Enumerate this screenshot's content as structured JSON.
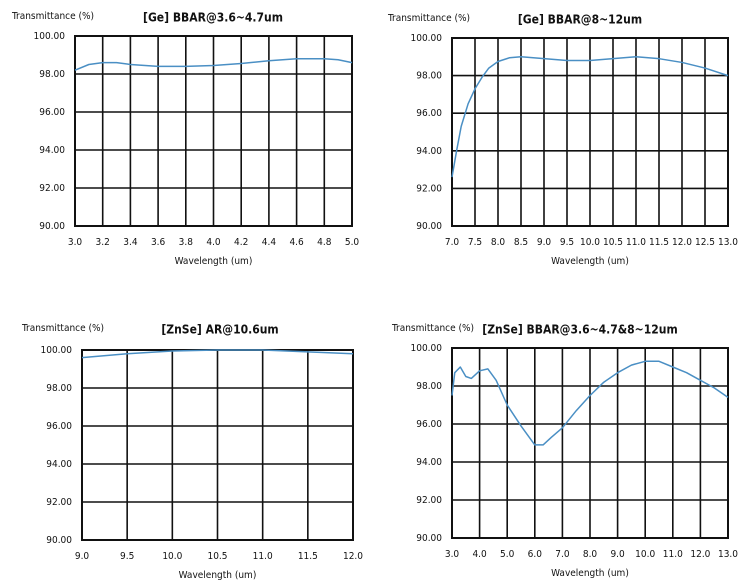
{
  "chart_data": [
    {
      "type": "line",
      "title": "[Ge] BBAR@3.6~4.7um",
      "ylabel": "Transmittance (%)",
      "xlabel": "Wavelength (um)",
      "color": "#4a8fc4",
      "grid": true,
      "x": [
        3.0,
        3.1,
        3.2,
        3.3,
        3.4,
        3.6,
        3.8,
        4.0,
        4.2,
        4.4,
        4.6,
        4.8,
        4.9,
        5.0
      ],
      "values": [
        98.2,
        98.5,
        98.6,
        98.6,
        98.5,
        98.4,
        98.4,
        98.45,
        98.55,
        98.7,
        98.8,
        98.8,
        98.75,
        98.6
      ],
      "xlim": [
        3.0,
        5.0
      ],
      "ylim": [
        90,
        100
      ],
      "xticks": [
        {
          "value": 3.0,
          "label": "3.0"
        },
        {
          "value": 3.2,
          "label": "3.2"
        },
        {
          "value": 3.4,
          "label": "3.4"
        },
        {
          "value": 3.6,
          "label": "3.6"
        },
        {
          "value": 3.8,
          "label": "3.8"
        },
        {
          "value": 4.0,
          "label": "4.0"
        },
        {
          "value": 4.2,
          "label": "4.2"
        },
        {
          "value": 4.4,
          "label": "4.4"
        },
        {
          "value": 4.6,
          "label": "4.6"
        },
        {
          "value": 4.8,
          "label": "4.8"
        },
        {
          "value": 5.0,
          "label": "5.0"
        }
      ],
      "yticks": [
        {
          "value": 100,
          "label": "100.00"
        },
        {
          "value": 98,
          "label": "98.00"
        },
        {
          "value": 96,
          "label": "96.00"
        },
        {
          "value": 94,
          "label": "94.00"
        },
        {
          "value": 92,
          "label": "92.00"
        },
        {
          "value": 90,
          "label": "90.00"
        }
      ]
    },
    {
      "type": "line",
      "title": "[Ge] BBAR@8~12um",
      "ylabel": "Transmittance (%)",
      "xlabel": "Wavelength (um)",
      "color": "#4a8fc4",
      "grid": true,
      "x": [
        7.0,
        7.1,
        7.2,
        7.35,
        7.5,
        7.65,
        7.8,
        8.0,
        8.25,
        8.5,
        9.0,
        9.5,
        10.0,
        10.5,
        11.0,
        11.5,
        12.0,
        12.5,
        13.0
      ],
      "values": [
        92.6,
        94.0,
        95.3,
        96.5,
        97.3,
        97.9,
        98.4,
        98.75,
        98.95,
        99.0,
        98.9,
        98.8,
        98.8,
        98.9,
        99.0,
        98.9,
        98.7,
        98.4,
        98.0
      ],
      "xlim": [
        7.0,
        13.0
      ],
      "ylim": [
        90,
        100
      ],
      "xticks": [
        {
          "value": 7.0,
          "label": "7.0"
        },
        {
          "value": 7.5,
          "label": "7.5"
        },
        {
          "value": 8.0,
          "label": "8.0"
        },
        {
          "value": 8.5,
          "label": "8.5"
        },
        {
          "value": 9.0,
          "label": "9.0"
        },
        {
          "value": 9.5,
          "label": "9.5"
        },
        {
          "value": 10.0,
          "label": "10.0"
        },
        {
          "value": 10.5,
          "label": "10.5"
        },
        {
          "value": 11.0,
          "label": "11.0"
        },
        {
          "value": 11.5,
          "label": "11.5"
        },
        {
          "value": 12.0,
          "label": "12.0"
        },
        {
          "value": 12.5,
          "label": "12.5"
        },
        {
          "value": 13.0,
          "label": "13.0"
        }
      ],
      "yticks": [
        {
          "value": 100,
          "label": "100.00"
        },
        {
          "value": 98,
          "label": "98.00"
        },
        {
          "value": 96,
          "label": "96.00"
        },
        {
          "value": 94,
          "label": "94.00"
        },
        {
          "value": 92,
          "label": "92.00"
        },
        {
          "value": 90,
          "label": "90.00"
        }
      ]
    },
    {
      "type": "line",
      "title": "[ZnSe] AR@10.6um",
      "ylabel": "Transmittance (%)",
      "xlabel": "Wavelength (um)",
      "color": "#4a8fc4",
      "grid": true,
      "x": [
        9.0,
        9.5,
        10.0,
        10.5,
        11.0,
        11.5,
        12.0
      ],
      "values": [
        99.6,
        99.8,
        99.95,
        100.0,
        100.0,
        99.9,
        99.8
      ],
      "xlim": [
        9.0,
        12.0
      ],
      "ylim": [
        90,
        100
      ],
      "xticks": [
        {
          "value": 9.0,
          "label": "9.0"
        },
        {
          "value": 9.5,
          "label": "9.5"
        },
        {
          "value": 10.0,
          "label": "10.0"
        },
        {
          "value": 10.5,
          "label": "10.5"
        },
        {
          "value": 11.0,
          "label": "11.0"
        },
        {
          "value": 11.5,
          "label": "11.5"
        },
        {
          "value": 12.0,
          "label": "12.0"
        }
      ],
      "yticks": [
        {
          "value": 100,
          "label": "100.00"
        },
        {
          "value": 98,
          "label": "98.00"
        },
        {
          "value": 96,
          "label": "96.00"
        },
        {
          "value": 94,
          "label": "94.00"
        },
        {
          "value": 92,
          "label": "92.00"
        },
        {
          "value": 90,
          "label": "90.00"
        }
      ]
    },
    {
      "type": "line",
      "title": "[ZnSe] BBAR@3.6~4.7&8~12um",
      "ylabel": "Transmittance (%)",
      "xlabel": "Wavelength (um)",
      "color": "#4a8fc4",
      "grid": true,
      "x": [
        3.0,
        3.1,
        3.3,
        3.5,
        3.7,
        4.0,
        4.3,
        4.6,
        5.0,
        5.5,
        6.0,
        6.3,
        6.6,
        7.0,
        7.5,
        8.0,
        8.5,
        9.0,
        9.5,
        10.0,
        10.5,
        11.0,
        11.5,
        12.0,
        12.5,
        13.0
      ],
      "values": [
        97.5,
        98.7,
        99.0,
        98.5,
        98.4,
        98.8,
        98.9,
        98.3,
        97.0,
        95.9,
        94.9,
        94.9,
        95.3,
        95.8,
        96.7,
        97.5,
        98.2,
        98.7,
        99.1,
        99.3,
        99.3,
        99.0,
        98.7,
        98.3,
        97.9,
        97.4
      ],
      "xlim": [
        3.0,
        13.0
      ],
      "ylim": [
        90,
        100
      ],
      "xticks": [
        {
          "value": 3.0,
          "label": "3.0"
        },
        {
          "value": 4.0,
          "label": "4.0"
        },
        {
          "value": 5.0,
          "label": "5.0"
        },
        {
          "value": 6.0,
          "label": "6.0"
        },
        {
          "value": 7.0,
          "label": "7.0"
        },
        {
          "value": 8.0,
          "label": "8.0"
        },
        {
          "value": 9.0,
          "label": "9.0"
        },
        {
          "value": 10.0,
          "label": "10.0"
        },
        {
          "value": 11.0,
          "label": "11.0"
        },
        {
          "value": 12.0,
          "label": "12.0"
        },
        {
          "value": 13.0,
          "label": "13.0"
        }
      ],
      "yticks": [
        {
          "value": 100,
          "label": "100.00"
        },
        {
          "value": 98,
          "label": "98.00"
        },
        {
          "value": 96,
          "label": "96.00"
        },
        {
          "value": 94,
          "label": "94.00"
        },
        {
          "value": 92,
          "label": "92.00"
        },
        {
          "value": 90,
          "label": "90.00"
        }
      ]
    }
  ]
}
